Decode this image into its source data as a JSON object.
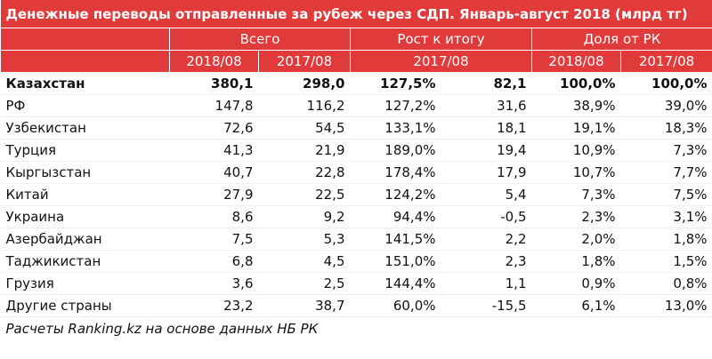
{
  "title": "Денежные переводы отправленные за рубеж через СДП. Январь-август 2018 (млрд тг)",
  "header": {
    "groups": [
      "Всего",
      "Рост к итогу",
      "Доля от РК"
    ],
    "subheaders": [
      "2018/08",
      "2017/08",
      "2017/08",
      "2018/08",
      "2017/08"
    ]
  },
  "table": {
    "rows": [
      [
        "Казахстан",
        "380,1",
        "298,0",
        "127,5%",
        "82,1",
        "100,0%",
        "100,0%"
      ],
      [
        "РФ",
        "147,8",
        "116,2",
        "127,2%",
        "31,6",
        "38,9%",
        "39,0%"
      ],
      [
        "Узбекистан",
        "72,6",
        "54,5",
        "133,1%",
        "18,1",
        "19,1%",
        "18,3%"
      ],
      [
        "Турция",
        "41,3",
        "21,9",
        "189,0%",
        "19,4",
        "10,9%",
        "7,3%"
      ],
      [
        "Кыргызстан",
        "40,7",
        "22,8",
        "178,4%",
        "17,9",
        "10,7%",
        "7,7%"
      ],
      [
        "Китай",
        "27,9",
        "22,5",
        "124,2%",
        "5,4",
        "7,3%",
        "7,5%"
      ],
      [
        "Украина",
        "8,6",
        "9,2",
        "94,4%",
        "-0,5",
        "2,3%",
        "3,1%"
      ],
      [
        "Азербайджан",
        "7,5",
        "5,3",
        "141,5%",
        "2,2",
        "2,0%",
        "1,8%"
      ],
      [
        "Таджикистан",
        "6,8",
        "4,5",
        "151,0%",
        "2,3",
        "1,8%",
        "1,5%"
      ],
      [
        "Грузия",
        "3,6",
        "2,5",
        "144,4%",
        "1,1",
        "0,9%",
        "0,8%"
      ],
      [
        "Другие страны",
        "23,2",
        "38,7",
        "60,0%",
        "-15,5",
        "6,1%",
        "13,0%"
      ]
    ]
  },
  "footer": "Расчеты Ranking.kz на основе данных НБ РК"
}
